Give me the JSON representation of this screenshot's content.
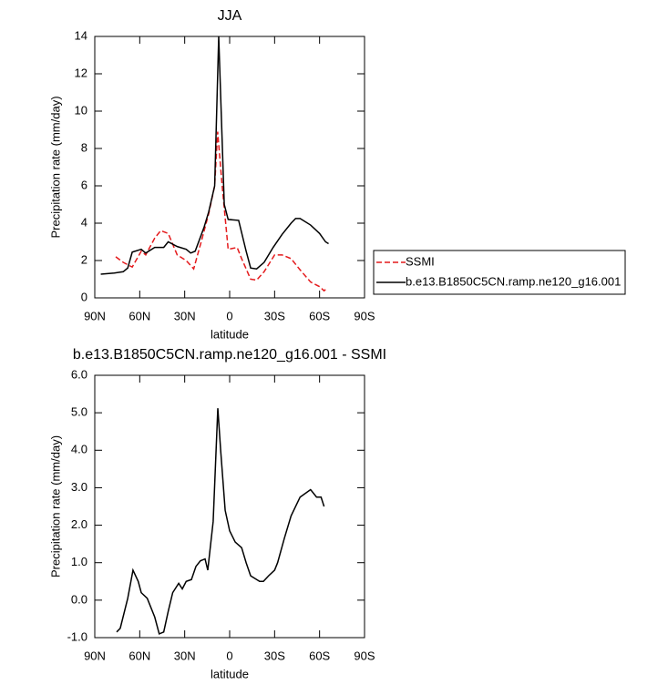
{
  "chart_data": [
    {
      "type": "line",
      "title": "JJA",
      "x_label": "latitude",
      "y_label": "Precipitation rate (mm/day)",
      "xlim": [
        90,
        -90
      ],
      "xticks": [
        {
          "value": 90,
          "label": "90N"
        },
        {
          "value": 60,
          "label": "60N"
        },
        {
          "value": 30,
          "label": "30N"
        },
        0,
        {
          "value": -30,
          "label": "30S"
        },
        {
          "value": -60,
          "label": "60S"
        },
        {
          "value": -90,
          "label": "90S"
        }
      ],
      "ylim": [
        0,
        14
      ],
      "yticks": [
        0,
        2,
        4,
        6,
        8,
        10,
        12,
        14
      ],
      "legend": "outside-right",
      "series": [
        {
          "name": "SSMI",
          "color": "#e41a1c",
          "line_style": "dashed",
          "x": [
            76,
            71,
            65,
            59,
            56,
            50,
            46,
            41,
            35,
            29,
            24,
            19,
            14,
            10,
            8,
            5,
            1,
            -5,
            -8,
            -14,
            -18,
            -23,
            -30,
            -35,
            -41,
            -47,
            -54,
            -60,
            -63,
            -64
          ],
          "values": [
            2.2,
            1.9,
            1.65,
            2.5,
            2.3,
            3.2,
            3.6,
            3.45,
            2.3,
            2.0,
            1.55,
            3.0,
            4.5,
            6.0,
            8.9,
            6.0,
            2.6,
            2.7,
            2.1,
            1.0,
            0.95,
            1.4,
            2.3,
            2.3,
            2.1,
            1.5,
            0.85,
            0.6,
            0.38,
            0.45
          ]
        },
        {
          "name": "b.e13.B1850C5CN.ramp.ne120_g16.001",
          "color": "#000000",
          "line_style": "solid",
          "x": [
            86,
            77,
            71,
            68,
            65,
            59,
            56,
            50,
            44,
            41,
            35,
            29,
            26,
            23,
            17,
            14,
            10,
            7.3,
            3.6,
            1,
            -6,
            -11,
            -14,
            -18,
            -23,
            -29,
            -35,
            -41,
            -44,
            -47,
            -54,
            -60,
            -64,
            -66
          ],
          "values": [
            1.27,
            1.33,
            1.4,
            1.6,
            2.45,
            2.6,
            2.4,
            2.7,
            2.7,
            3.0,
            2.75,
            2.6,
            2.4,
            2.5,
            3.8,
            4.6,
            6.0,
            14.0,
            5.0,
            4.2,
            4.15,
            2.5,
            1.6,
            1.55,
            1.9,
            2.7,
            3.4,
            4.0,
            4.25,
            4.25,
            3.9,
            3.45,
            3.0,
            2.9
          ]
        }
      ]
    },
    {
      "type": "line",
      "title": "b.e13.B1850C5CN.ramp.ne120_g16.001 - SSMI",
      "x_label": "latitude",
      "y_label": "Precipitation rate (mm/day)",
      "xlim": [
        90,
        -90
      ],
      "xticks": [
        {
          "value": 90,
          "label": "90N"
        },
        {
          "value": 60,
          "label": "60N"
        },
        {
          "value": 30,
          "label": "30N"
        },
        0,
        {
          "value": -30,
          "label": "30S"
        },
        {
          "value": -60,
          "label": "60S"
        },
        {
          "value": -90,
          "label": "90S"
        }
      ],
      "ylim": [
        -1,
        6
      ],
      "yticks": [
        {
          "value": -1,
          "label": "-1.0"
        },
        {
          "value": 0,
          "label": "0.0"
        },
        {
          "value": 1,
          "label": "1.0"
        },
        {
          "value": 2,
          "label": "2.0"
        },
        {
          "value": 3,
          "label": "3.0"
        },
        {
          "value": 4,
          "label": "4.0"
        },
        {
          "value": 5,
          "label": "5.0"
        },
        {
          "value": 6,
          "label": "6.0"
        }
      ],
      "series": [
        {
          "color": "#000000",
          "line_style": "solid",
          "x": [
            75.4,
            73,
            68,
            64.5,
            61,
            59,
            55,
            50,
            47,
            44,
            41,
            38,
            34,
            31.6,
            29,
            25.5,
            22.5,
            19.5,
            16.4,
            14.6,
            11,
            7.9,
            6,
            3,
            0,
            -3.7,
            -8,
            -11,
            -14,
            -20,
            -22.5,
            -26,
            -30,
            -32,
            -36.5,
            -41,
            -47,
            -54,
            -58,
            -61,
            -63
          ],
          "values": [
            -0.85,
            -0.75,
            0.05,
            0.8,
            0.5,
            0.2,
            0.05,
            -0.45,
            -0.9,
            -0.85,
            -0.3,
            0.2,
            0.45,
            0.3,
            0.5,
            0.55,
            0.9,
            1.05,
            1.1,
            0.8,
            2.1,
            5.12,
            4.0,
            2.4,
            1.85,
            1.55,
            1.4,
            1.0,
            0.65,
            0.5,
            0.5,
            0.65,
            0.8,
            1.0,
            1.65,
            2.25,
            2.75,
            2.95,
            2.75,
            2.75,
            2.5
          ]
        }
      ]
    }
  ]
}
